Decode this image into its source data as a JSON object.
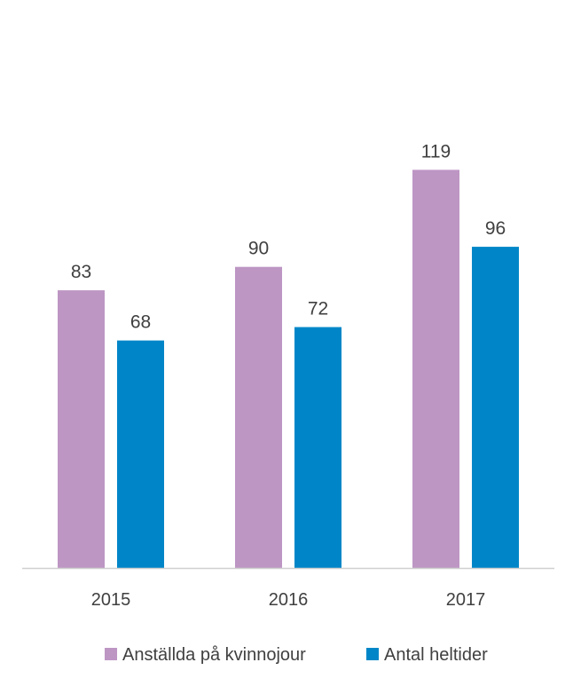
{
  "chart_data": {
    "type": "bar",
    "title": "",
    "xlabel": "",
    "ylabel": "",
    "categories": [
      "2015",
      "2016",
      "2017"
    ],
    "series": [
      {
        "name": "Anställda på kvinnojour",
        "color": "#bd96c4",
        "values": [
          83,
          90,
          119
        ]
      },
      {
        "name": "Antal heltider",
        "color": "#0086c8",
        "values": [
          68,
          72,
          96
        ]
      }
    ],
    "ylim": [
      0,
      170
    ],
    "grid": false,
    "legend_position": "bottom",
    "data_labels": true,
    "axis_color": "#d0d0d0",
    "text_color": "#404040"
  }
}
